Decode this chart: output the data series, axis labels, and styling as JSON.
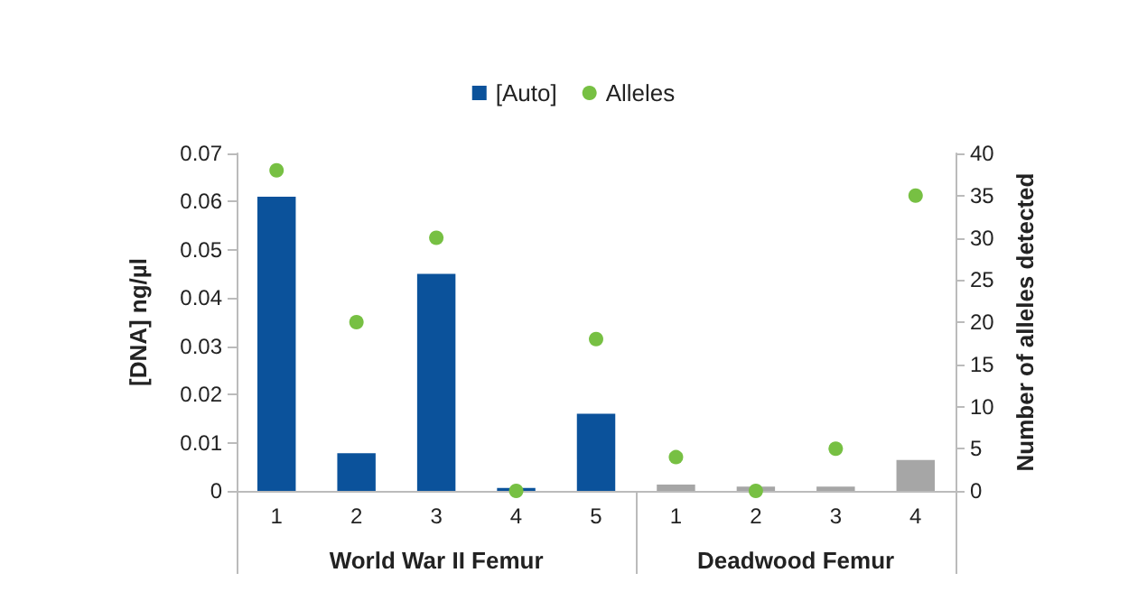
{
  "chart_data": {
    "type": "bar",
    "ylabel": "[DNA] ng/µl",
    "y2label": "Number of alleles detected",
    "categories": [
      "1",
      "2",
      "3",
      "4",
      "5",
      "1",
      "2",
      "3",
      "4"
    ],
    "annotations": [
      "World War II Femur",
      "Deadwood Femur"
    ],
    "series": [
      {
        "name": "[Auto]",
        "color": "#0b529b",
        "colors": [
          "#0b529b",
          "#0b529b",
          "#0b529b",
          "#0b529b",
          "#0b529b",
          "#a6a6a6",
          "#a6a6a6",
          "#a6a6a6",
          "#a6a6a6"
        ],
        "values": [
          0.061,
          0.0078,
          0.045,
          0.0006,
          0.016,
          0.0013,
          0.0009,
          0.0009,
          0.0064
        ]
      },
      {
        "name": "Alleles",
        "type": "scatter",
        "axis": "y2",
        "color": "#77c043",
        "values": [
          38,
          20,
          30,
          0,
          18,
          4,
          0,
          5,
          35
        ]
      }
    ],
    "ylim": [
      0,
      0.07
    ],
    "yticks": [
      0,
      0.01,
      0.02,
      0.03,
      0.04,
      0.05,
      0.06,
      0.07
    ],
    "y2lim": [
      0,
      40
    ],
    "y2ticks": [
      0,
      5,
      10,
      15,
      20,
      25,
      30,
      35,
      40
    ],
    "legend": "top",
    "grid": false,
    "marker": "circle"
  }
}
